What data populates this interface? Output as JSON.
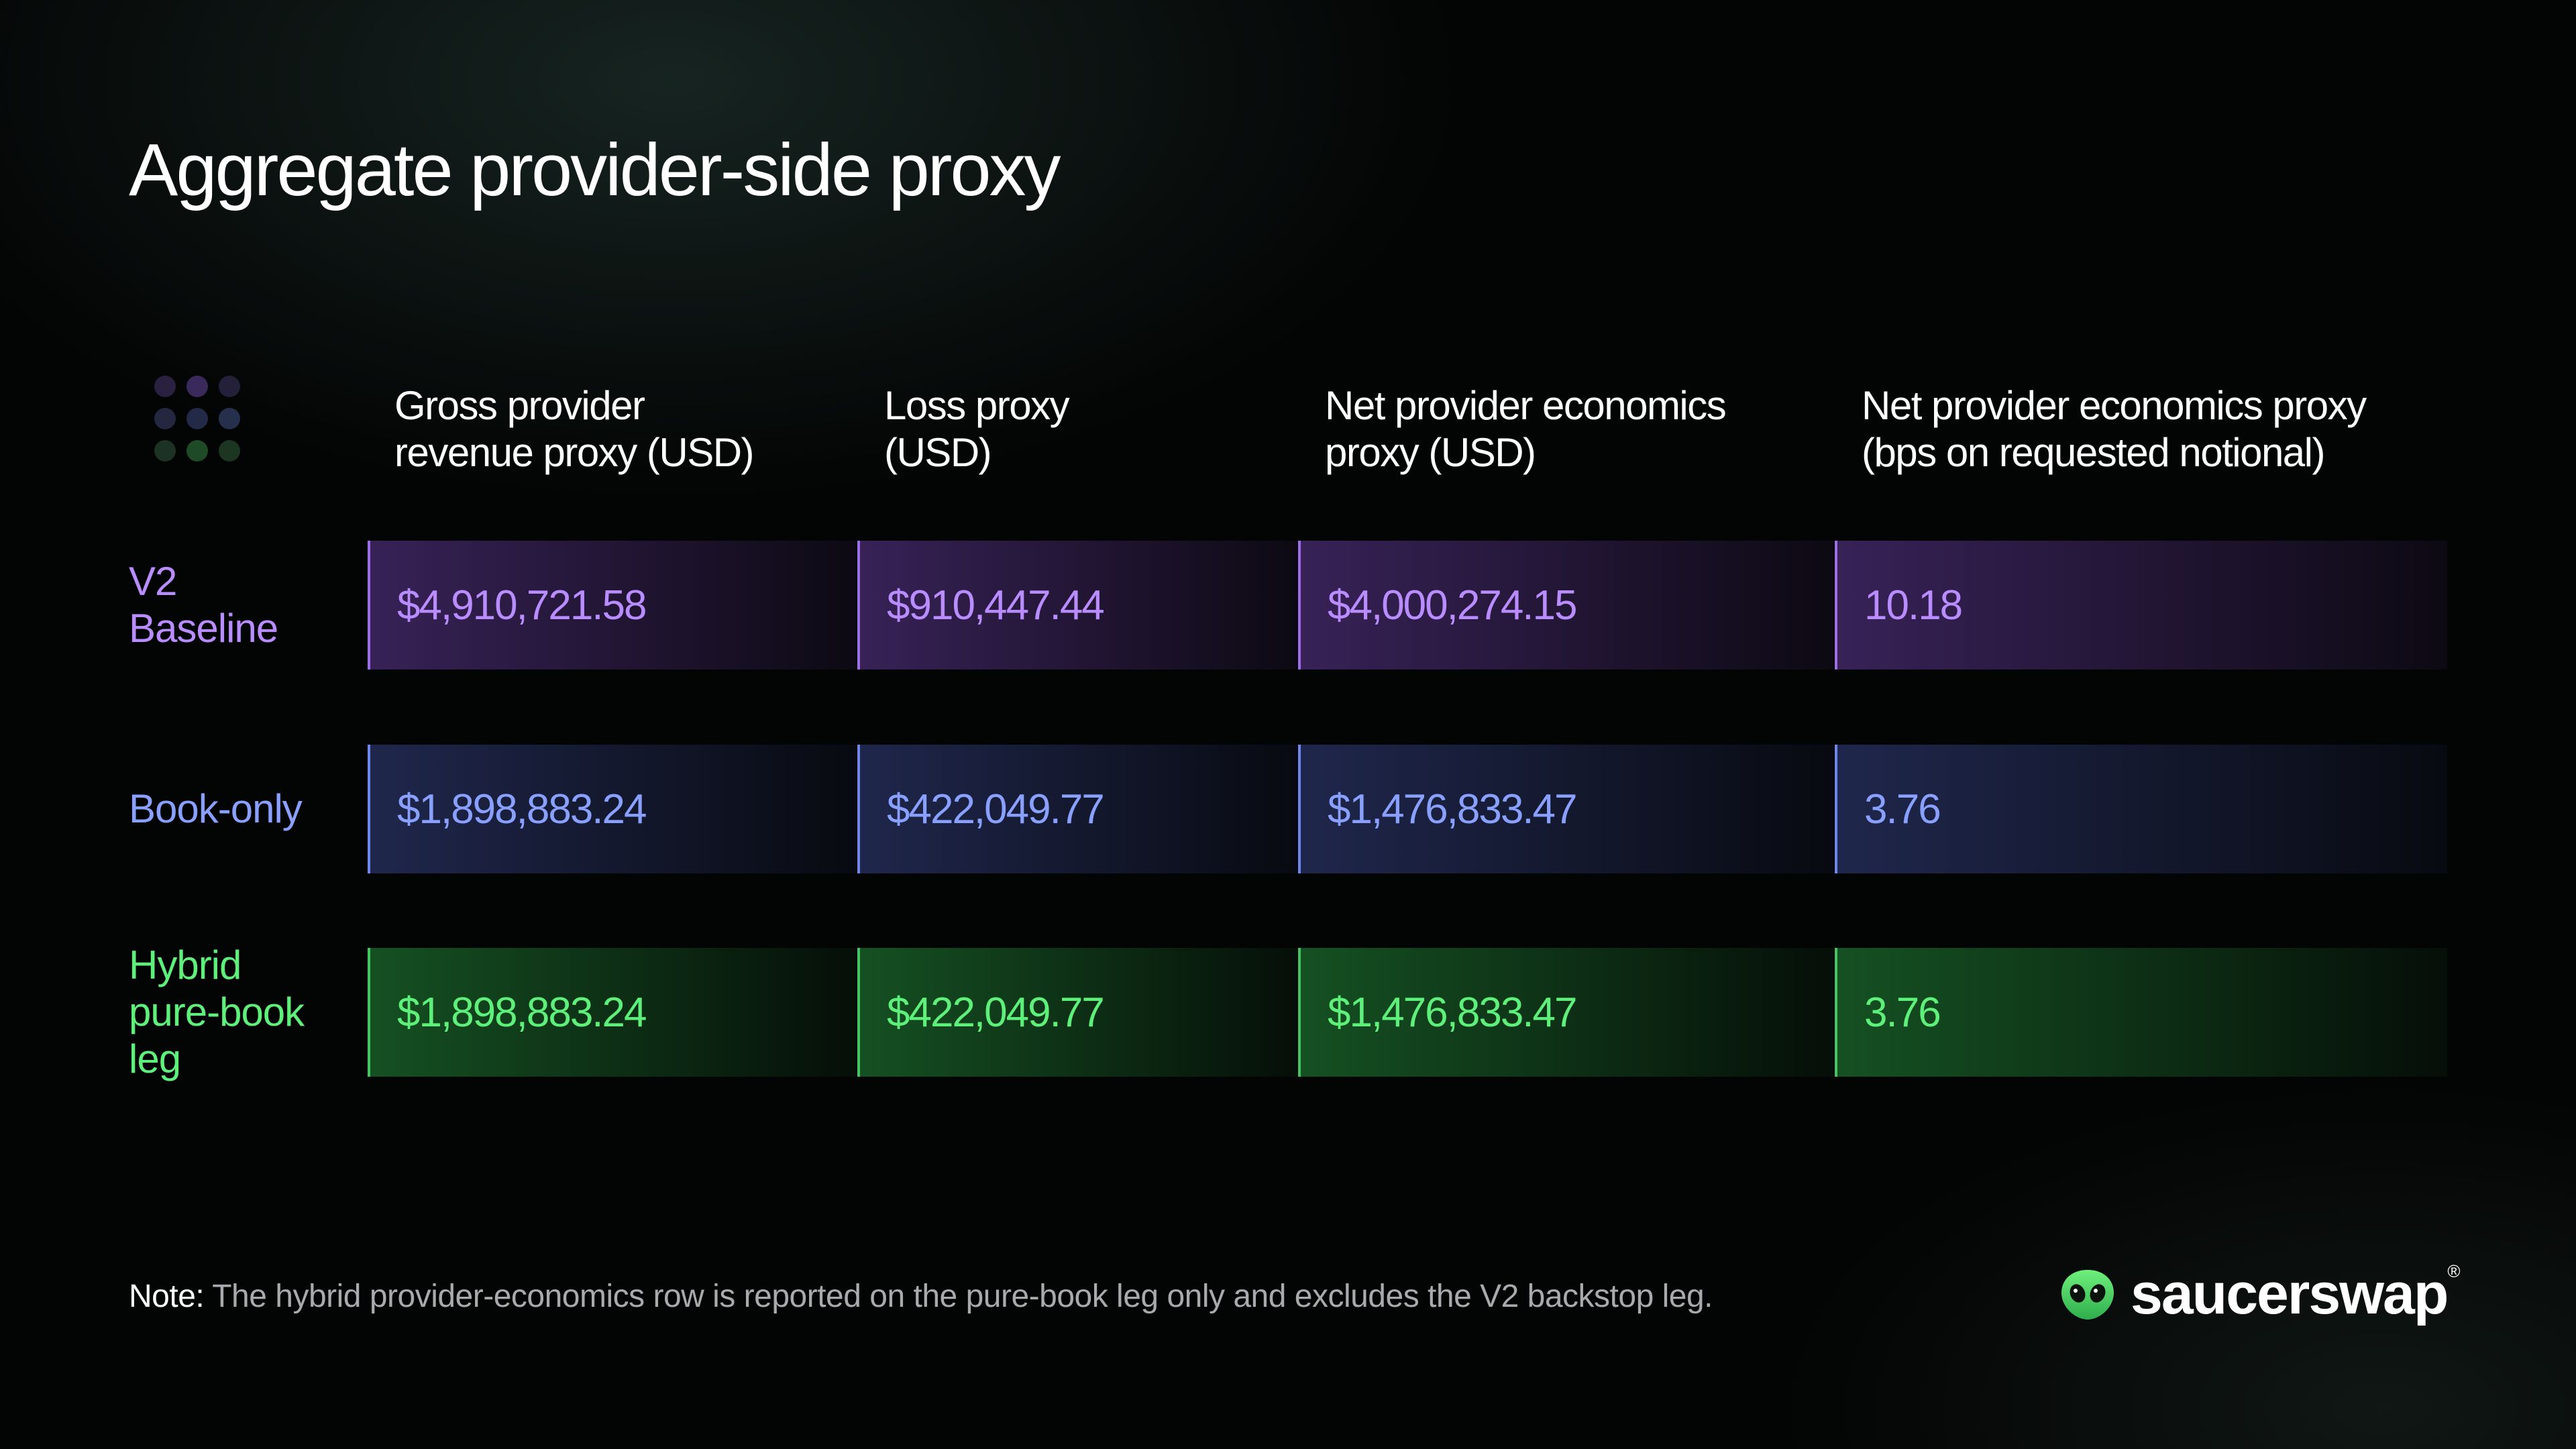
{
  "title": "Aggregate provider-side proxy",
  "colors": {
    "purple": "#b98cff",
    "blue": "#8aa0ff",
    "green": "#5ef07a",
    "dots": [
      "#2a2040",
      "#3a2a5c",
      "#25203a",
      "#232840",
      "#232a48",
      "#26304c",
      "#1c3222",
      "#1f4a28",
      "#1c3622"
    ]
  },
  "chart_data": {
    "type": "table",
    "columns": [
      [
        "Gross provider",
        "revenue proxy (USD)"
      ],
      [
        "Loss proxy",
        "(USD)"
      ],
      [
        "Net provider economics",
        "proxy (USD)"
      ],
      [
        "Net provider economics proxy",
        "(bps on requested notional)"
      ]
    ],
    "rows": [
      {
        "label": [
          "V2",
          "Baseline"
        ],
        "values": [
          "$4,910,721.58",
          "$910,447.44",
          "$4,000,274.15",
          "10.18"
        ]
      },
      {
        "label": [
          "Book-only"
        ],
        "values": [
          "$1,898,883.24",
          "$422,049.77",
          "$1,476,833.47",
          "3.76"
        ]
      },
      {
        "label": [
          "Hybrid",
          "pure-book",
          "leg"
        ],
        "values": [
          "$1,898,883.24",
          "$422,049.77",
          "$1,476,833.47",
          "3.76"
        ]
      }
    ]
  },
  "note": {
    "label": "Note:",
    "text": " The hybrid provider-economics row is reported on the pure-book leg only and excludes the V2 backstop leg."
  },
  "logo": {
    "text": "saucerswap",
    "mark": "®",
    "icon": "alien-head-icon"
  }
}
